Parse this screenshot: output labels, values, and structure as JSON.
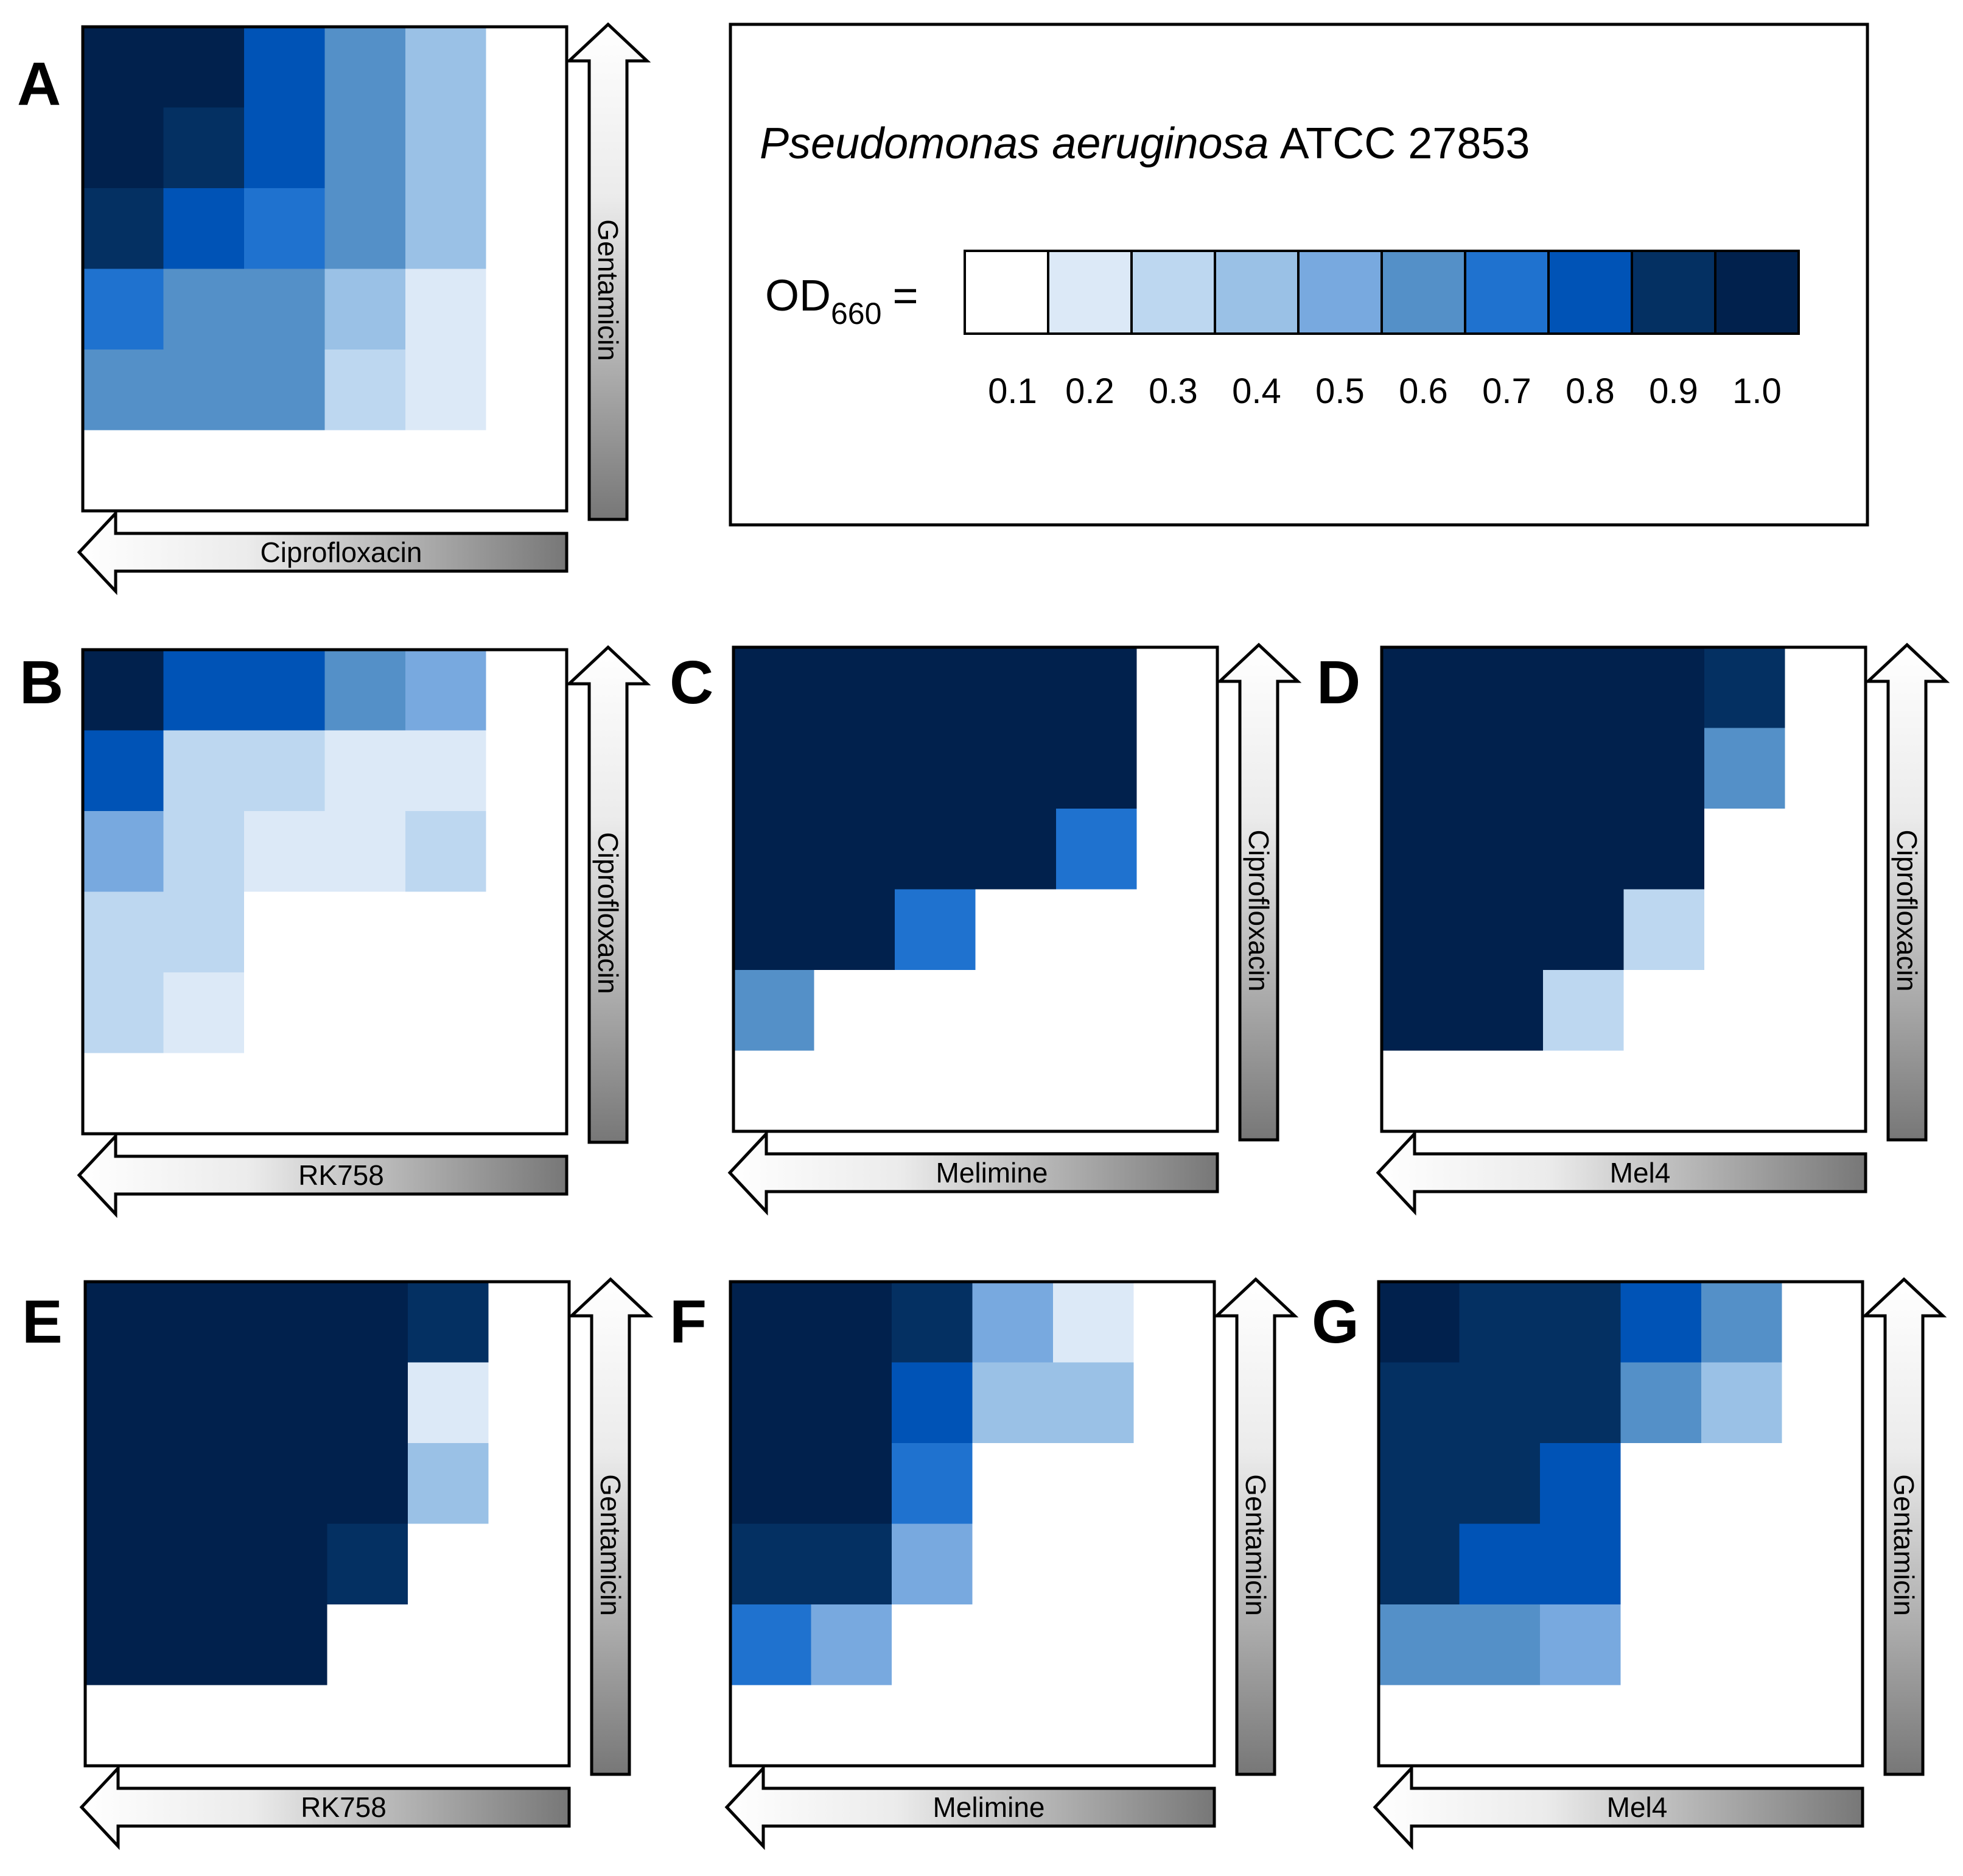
{
  "figure": {
    "legend": {
      "organism": "Pseudomonas aeruginosa",
      "strain": "ATCC 27853",
      "od_label": "OD",
      "od_subscript": "660",
      "equals": "=",
      "levels": [
        "0.1",
        "0.2",
        "0.3",
        "0.4",
        "0.5",
        "0.6",
        "0.7",
        "0.8",
        "0.9",
        "1.0"
      ],
      "colors": [
        "#ffffff",
        "#dce9f7",
        "#bdd7f0",
        "#9ac1e6",
        "#78a9df",
        "#5490c8",
        "#1f72cf",
        "#0053b6",
        "#043062",
        "#01214d"
      ]
    }
  },
  "chart_data": [
    {
      "type": "heatmap",
      "panel": "A",
      "xlabel": "Ciprofloxacin",
      "ylabel": "Gentamicin",
      "rows": 6,
      "cols": 6,
      "values": [
        [
          1.0,
          1.0,
          0.8,
          0.6,
          0.4,
          0.1
        ],
        [
          1.0,
          0.9,
          0.8,
          0.6,
          0.4,
          0.1
        ],
        [
          0.9,
          0.8,
          0.7,
          0.6,
          0.4,
          0.1
        ],
        [
          0.7,
          0.6,
          0.6,
          0.4,
          0.2,
          0.1
        ],
        [
          0.6,
          0.6,
          0.6,
          0.3,
          0.2,
          0.1
        ],
        [
          0.1,
          0.1,
          0.1,
          0.1,
          0.1,
          0.1
        ]
      ]
    },
    {
      "type": "heatmap",
      "panel": "B",
      "xlabel": "RK758",
      "ylabel": "Ciprofloxacin",
      "rows": 6,
      "cols": 6,
      "values": [
        [
          1.0,
          0.8,
          0.8,
          0.6,
          0.5,
          0.1
        ],
        [
          0.8,
          0.3,
          0.3,
          0.2,
          0.2,
          0.1
        ],
        [
          0.5,
          0.3,
          0.2,
          0.2,
          0.3,
          0.1
        ],
        [
          0.3,
          0.3,
          0.1,
          0.1,
          0.1,
          0.1
        ],
        [
          0.3,
          0.2,
          0.1,
          0.1,
          0.1,
          0.1
        ],
        [
          0.1,
          0.1,
          0.1,
          0.1,
          0.1,
          0.1
        ]
      ]
    },
    {
      "type": "heatmap",
      "panel": "C",
      "xlabel": "Melimine",
      "ylabel": "Ciprofloxacin",
      "rows": 6,
      "cols": 6,
      "values": [
        [
          1.0,
          1.0,
          1.0,
          1.0,
          1.0,
          0.1
        ],
        [
          1.0,
          1.0,
          1.0,
          1.0,
          1.0,
          0.1
        ],
        [
          1.0,
          1.0,
          1.0,
          1.0,
          0.7,
          0.1
        ],
        [
          1.0,
          1.0,
          0.7,
          0.1,
          0.1,
          0.1
        ],
        [
          0.6,
          0.1,
          0.1,
          0.1,
          0.1,
          0.1
        ],
        [
          0.1,
          0.1,
          0.1,
          0.1,
          0.1,
          0.1
        ]
      ]
    },
    {
      "type": "heatmap",
      "panel": "D",
      "xlabel": "Mel4",
      "ylabel": "Ciprofloxacin",
      "rows": 6,
      "cols": 6,
      "values": [
        [
          1.0,
          1.0,
          1.0,
          1.0,
          0.9,
          0.1
        ],
        [
          1.0,
          1.0,
          1.0,
          1.0,
          0.6,
          0.1
        ],
        [
          1.0,
          1.0,
          1.0,
          1.0,
          0.1,
          0.1
        ],
        [
          1.0,
          1.0,
          1.0,
          0.3,
          0.1,
          0.1
        ],
        [
          1.0,
          1.0,
          0.3,
          0.1,
          0.1,
          0.1
        ],
        [
          0.1,
          0.1,
          0.1,
          0.1,
          0.1,
          0.1
        ]
      ]
    },
    {
      "type": "heatmap",
      "panel": "E",
      "xlabel": "RK758",
      "ylabel": "Gentamicin",
      "rows": 6,
      "cols": 6,
      "values": [
        [
          1.0,
          1.0,
          1.0,
          1.0,
          0.9,
          0.1
        ],
        [
          1.0,
          1.0,
          1.0,
          1.0,
          0.2,
          0.1
        ],
        [
          1.0,
          1.0,
          1.0,
          1.0,
          0.4,
          0.1
        ],
        [
          1.0,
          1.0,
          1.0,
          0.9,
          0.1,
          0.1
        ],
        [
          1.0,
          1.0,
          1.0,
          0.1,
          0.1,
          0.1
        ],
        [
          0.1,
          0.1,
          0.1,
          0.1,
          0.1,
          0.1
        ]
      ]
    },
    {
      "type": "heatmap",
      "panel": "F",
      "xlabel": "Melimine",
      "ylabel": "Gentamicin",
      "rows": 6,
      "cols": 6,
      "values": [
        [
          1.0,
          1.0,
          0.9,
          0.5,
          0.2,
          0.1
        ],
        [
          1.0,
          1.0,
          0.8,
          0.4,
          0.4,
          0.1
        ],
        [
          1.0,
          1.0,
          0.7,
          0.1,
          0.1,
          0.1
        ],
        [
          0.9,
          0.9,
          0.5,
          0.1,
          0.1,
          0.1
        ],
        [
          0.7,
          0.5,
          0.1,
          0.1,
          0.1,
          0.1
        ],
        [
          0.1,
          0.1,
          0.1,
          0.1,
          0.1,
          0.1
        ]
      ]
    },
    {
      "type": "heatmap",
      "panel": "G",
      "xlabel": "Mel4",
      "ylabel": "Gentamicin",
      "rows": 6,
      "cols": 6,
      "values": [
        [
          1.0,
          0.9,
          0.9,
          0.8,
          0.6,
          0.1
        ],
        [
          0.9,
          0.9,
          0.9,
          0.6,
          0.4,
          0.1
        ],
        [
          0.9,
          0.9,
          0.8,
          0.1,
          0.1,
          0.1
        ],
        [
          0.9,
          0.8,
          0.8,
          0.1,
          0.1,
          0.1
        ],
        [
          0.6,
          0.6,
          0.5,
          0.1,
          0.1,
          0.1
        ],
        [
          0.1,
          0.1,
          0.1,
          0.1,
          0.1,
          0.1
        ]
      ]
    }
  ]
}
